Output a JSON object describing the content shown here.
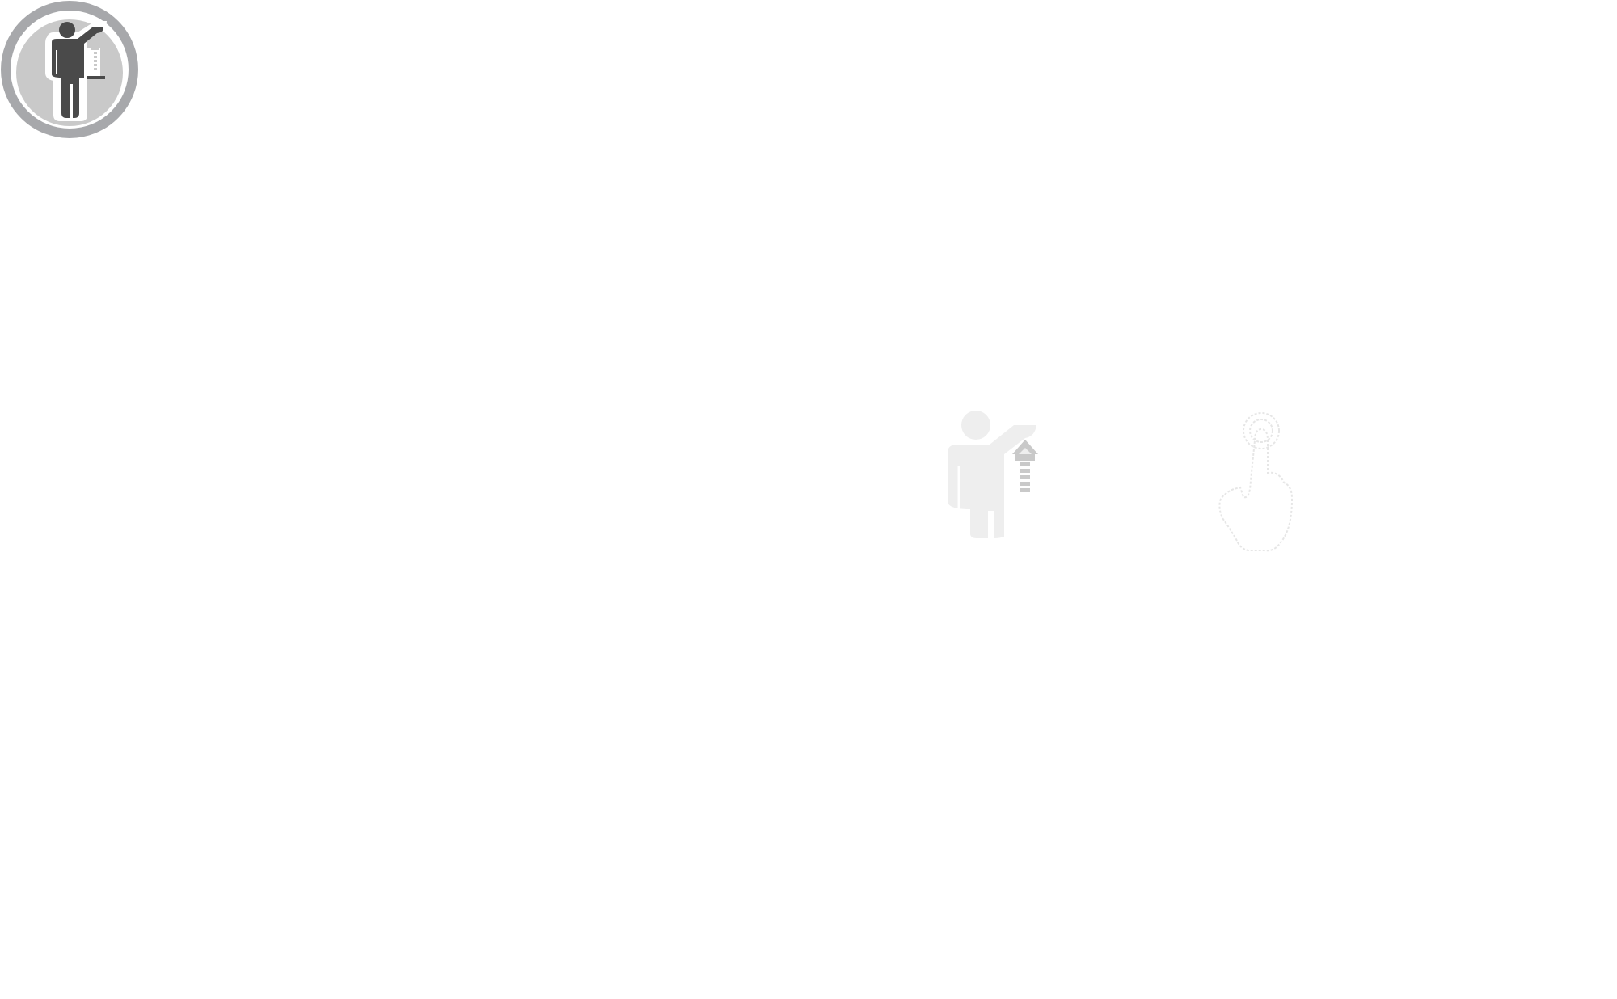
{
  "icons": {
    "badge": {
      "icon": "person-raising-arrow-icon",
      "ring_color": "#a7a8ab",
      "inner_color": "#c9c9c9",
      "figure_color": "#4a4a4a"
    },
    "person": {
      "icon": "person-raising-arrow-icon",
      "figure_color": "#eeeeee",
      "arrow_color": "#c9c9c9"
    },
    "hand": {
      "icon": "tap-gesture-icon",
      "outline_color": "#e6e6e6"
    }
  }
}
